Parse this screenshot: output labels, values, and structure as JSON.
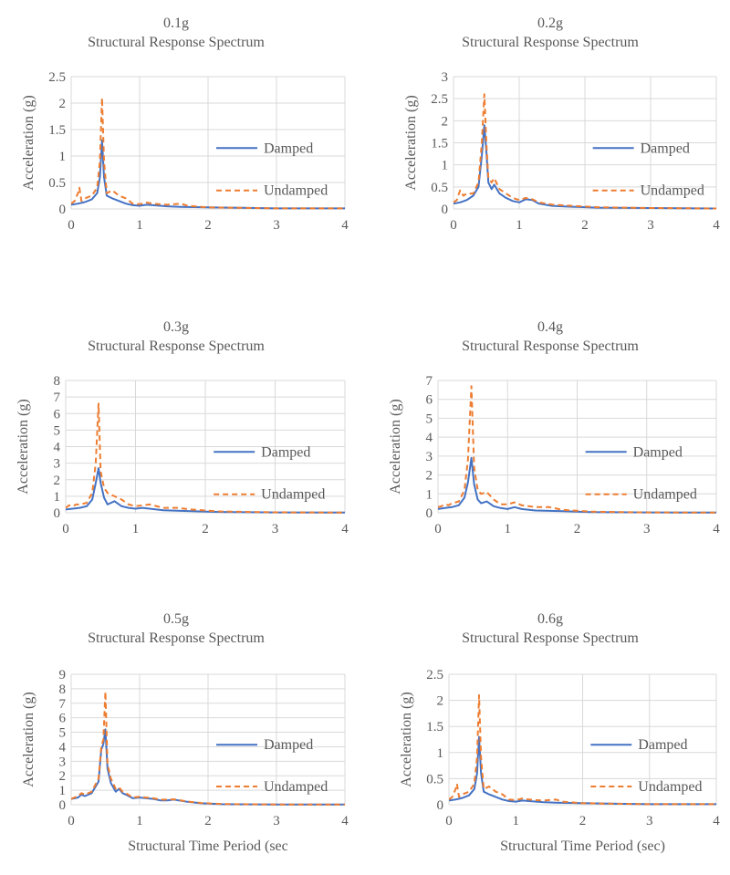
{
  "legend": {
    "damped": "Damped",
    "undamped": "Undamped"
  },
  "colors": {
    "damped": "#4472C4",
    "undamped": "#ED7D31",
    "grid": "#D9D9D9",
    "text": "#595959"
  },
  "chart_data": [
    {
      "type": "line",
      "title": "0.1g",
      "subtitle": "Structural Response Spectrum",
      "xlabel": "",
      "ylabel": "Acceleration (g)",
      "xlim": [
        0,
        4
      ],
      "ylim": [
        0,
        2.5
      ],
      "ytick_step": 0.5,
      "xticks": [
        "0",
        "1",
        "2",
        "3",
        "4"
      ],
      "yticks": [
        "0",
        "0.5",
        "1",
        "1.5",
        "2",
        "2.5"
      ],
      "grid": true,
      "legend_position": "right",
      "series": [
        {
          "name": "Damped",
          "style": "solid",
          "x": [
            0,
            0.1,
            0.2,
            0.3,
            0.38,
            0.42,
            0.45,
            0.48,
            0.52,
            0.6,
            0.7,
            0.8,
            0.9,
            1.0,
            1.1,
            1.2,
            1.4,
            1.6,
            2.0,
            2.5,
            3.0,
            4.0
          ],
          "y": [
            0.08,
            0.1,
            0.13,
            0.18,
            0.3,
            0.6,
            1.3,
            0.6,
            0.25,
            0.2,
            0.15,
            0.1,
            0.07,
            0.06,
            0.08,
            0.07,
            0.05,
            0.04,
            0.03,
            0.02,
            0.01,
            0.01
          ]
        },
        {
          "name": "Undamped",
          "style": "dashed",
          "x": [
            0,
            0.05,
            0.1,
            0.12,
            0.15,
            0.2,
            0.3,
            0.38,
            0.42,
            0.45,
            0.48,
            0.52,
            0.6,
            0.65,
            0.7,
            0.8,
            0.9,
            1.0,
            1.1,
            1.2,
            1.4,
            1.6,
            1.7,
            2.0,
            2.5,
            3.0,
            4.0
          ],
          "y": [
            0.1,
            0.15,
            0.3,
            0.4,
            0.15,
            0.2,
            0.25,
            0.4,
            0.9,
            2.1,
            0.9,
            0.3,
            0.35,
            0.3,
            0.25,
            0.2,
            0.1,
            0.09,
            0.12,
            0.1,
            0.08,
            0.1,
            0.06,
            0.03,
            0.02,
            0.01,
            0.01
          ]
        }
      ]
    },
    {
      "type": "line",
      "title": "0.2g",
      "subtitle": "Structural Response Spectrum",
      "xlabel": "",
      "ylabel": "Acceleration (g)",
      "xlim": [
        0,
        4
      ],
      "ylim": [
        0,
        3
      ],
      "ytick_step": 0.5,
      "xticks": [
        "0",
        "1",
        "2",
        "3",
        "4"
      ],
      "yticks": [
        "0",
        "0.5",
        "1",
        "1.5",
        "2",
        "2.5",
        "3"
      ],
      "grid": true,
      "legend_position": "right",
      "series": [
        {
          "name": "Damped",
          "style": "solid",
          "x": [
            0,
            0.1,
            0.2,
            0.3,
            0.38,
            0.43,
            0.47,
            0.5,
            0.53,
            0.58,
            0.62,
            0.7,
            0.8,
            0.9,
            1.0,
            1.1,
            1.2,
            1.3,
            1.5,
            1.8,
            2.2,
            3.0,
            4.0
          ],
          "y": [
            0.12,
            0.15,
            0.2,
            0.3,
            0.5,
            1.2,
            1.9,
            1.3,
            0.6,
            0.45,
            0.55,
            0.35,
            0.25,
            0.18,
            0.15,
            0.22,
            0.2,
            0.12,
            0.07,
            0.05,
            0.03,
            0.02,
            0.01
          ]
        },
        {
          "name": "Undamped",
          "style": "dashed",
          "x": [
            0,
            0.05,
            0.1,
            0.15,
            0.2,
            0.3,
            0.38,
            0.43,
            0.47,
            0.5,
            0.53,
            0.58,
            0.62,
            0.7,
            0.8,
            0.9,
            1.0,
            1.1,
            1.2,
            1.3,
            1.5,
            1.8,
            2.2,
            3.0,
            4.0
          ],
          "y": [
            0.15,
            0.2,
            0.42,
            0.3,
            0.35,
            0.35,
            0.6,
            1.5,
            2.6,
            1.5,
            0.7,
            0.6,
            0.7,
            0.45,
            0.35,
            0.25,
            0.2,
            0.25,
            0.22,
            0.15,
            0.1,
            0.07,
            0.04,
            0.02,
            0.01
          ]
        }
      ]
    },
    {
      "type": "line",
      "title": "0.3g",
      "subtitle": "Structural Response Spectrum",
      "xlabel": "",
      "ylabel": "Acceleration (g)",
      "xlim": [
        0,
        4
      ],
      "ylim": [
        0,
        8
      ],
      "ytick_step": 1,
      "xticks": [
        "0",
        "1",
        "2",
        "3",
        "4"
      ],
      "yticks": [
        "0",
        "1",
        "2",
        "3",
        "4",
        "5",
        "6",
        "7",
        "8"
      ],
      "grid": true,
      "legend_position": "right",
      "series": [
        {
          "name": "Damped",
          "style": "solid",
          "x": [
            0,
            0.1,
            0.2,
            0.3,
            0.38,
            0.43,
            0.47,
            0.5,
            0.55,
            0.6,
            0.7,
            0.8,
            0.9,
            1.0,
            1.1,
            1.2,
            1.4,
            1.8,
            2.2,
            3.0,
            4.0
          ],
          "y": [
            0.2,
            0.25,
            0.3,
            0.4,
            0.8,
            1.8,
            2.7,
            1.8,
            0.9,
            0.5,
            0.7,
            0.4,
            0.3,
            0.25,
            0.3,
            0.25,
            0.15,
            0.1,
            0.05,
            0.02,
            0.01
          ]
        },
        {
          "name": "Undamped",
          "style": "dashed",
          "x": [
            0,
            0.05,
            0.1,
            0.15,
            0.2,
            0.3,
            0.38,
            0.43,
            0.47,
            0.5,
            0.55,
            0.6,
            0.7,
            0.8,
            0.9,
            1.0,
            1.2,
            1.4,
            1.6,
            1.8,
            2.2,
            3.0,
            4.0
          ],
          "y": [
            0.3,
            0.45,
            0.4,
            0.5,
            0.5,
            0.6,
            1.2,
            3.0,
            6.6,
            2.5,
            1.5,
            1.2,
            1.0,
            0.8,
            0.5,
            0.4,
            0.5,
            0.3,
            0.3,
            0.2,
            0.08,
            0.03,
            0.01
          ]
        }
      ]
    },
    {
      "type": "line",
      "title": "0.4g",
      "subtitle": "Structural Response Spectrum",
      "xlabel": "",
      "ylabel": "Acceleration (g)",
      "xlim": [
        0,
        4
      ],
      "ylim": [
        0,
        7
      ],
      "ytick_step": 1,
      "xticks": [
        "0",
        "1",
        "2",
        "3",
        "4"
      ],
      "yticks": [
        "0",
        "1",
        "2",
        "3",
        "4",
        "5",
        "6",
        "7"
      ],
      "grid": true,
      "legend_position": "right",
      "series": [
        {
          "name": "Damped",
          "style": "solid",
          "x": [
            0,
            0.1,
            0.2,
            0.3,
            0.38,
            0.43,
            0.48,
            0.52,
            0.57,
            0.62,
            0.7,
            0.8,
            0.9,
            1.0,
            1.1,
            1.2,
            1.4,
            1.8,
            2.2,
            3.0,
            4.0
          ],
          "y": [
            0.2,
            0.25,
            0.3,
            0.4,
            0.8,
            1.6,
            2.9,
            1.5,
            0.7,
            0.5,
            0.6,
            0.35,
            0.25,
            0.2,
            0.3,
            0.2,
            0.12,
            0.08,
            0.04,
            0.02,
            0.01
          ]
        },
        {
          "name": "Undamped",
          "style": "dashed",
          "x": [
            0,
            0.05,
            0.1,
            0.15,
            0.2,
            0.3,
            0.38,
            0.43,
            0.48,
            0.52,
            0.57,
            0.62,
            0.7,
            0.8,
            0.9,
            1.0,
            1.1,
            1.2,
            1.4,
            1.6,
            1.8,
            2.2,
            3.0,
            4.0
          ],
          "y": [
            0.3,
            0.35,
            0.45,
            0.4,
            0.5,
            0.6,
            1.2,
            2.8,
            6.7,
            2.4,
            1.2,
            1.0,
            1.1,
            0.7,
            0.45,
            0.45,
            0.55,
            0.4,
            0.3,
            0.3,
            0.15,
            0.06,
            0.02,
            0.01
          ]
        }
      ]
    },
    {
      "type": "line",
      "title": "0.5g",
      "subtitle": "Structural Response Spectrum",
      "xlabel": "Structural Time Period (sec",
      "ylabel": "Acceleration (g)",
      "xlim": [
        0,
        4
      ],
      "ylim": [
        0,
        9
      ],
      "ytick_step": 1,
      "xticks": [
        "0",
        "1",
        "2",
        "3",
        "4"
      ],
      "yticks": [
        "0",
        "1",
        "2",
        "3",
        "4",
        "5",
        "6",
        "7",
        "8",
        "9"
      ],
      "grid": true,
      "legend_position": "right",
      "series": [
        {
          "name": "Damped",
          "style": "solid",
          "x": [
            0,
            0.1,
            0.15,
            0.2,
            0.3,
            0.4,
            0.44,
            0.47,
            0.5,
            0.53,
            0.58,
            0.65,
            0.7,
            0.75,
            0.8,
            0.9,
            1.0,
            1.1,
            1.2,
            1.3,
            1.4,
            1.5,
            1.7,
            1.9,
            2.2,
            3.0,
            4.0
          ],
          "y": [
            0.4,
            0.5,
            0.7,
            0.6,
            0.8,
            1.6,
            3.8,
            4.2,
            5.2,
            2.5,
            1.5,
            0.9,
            1.1,
            0.8,
            0.7,
            0.45,
            0.5,
            0.45,
            0.4,
            0.3,
            0.3,
            0.35,
            0.2,
            0.1,
            0.04,
            0.02,
            0.01
          ]
        },
        {
          "name": "Undamped",
          "style": "dashed",
          "x": [
            0,
            0.1,
            0.15,
            0.2,
            0.3,
            0.4,
            0.44,
            0.47,
            0.5,
            0.53,
            0.58,
            0.65,
            0.7,
            0.75,
            0.8,
            0.9,
            1.0,
            1.1,
            1.2,
            1.3,
            1.4,
            1.5,
            1.7,
            1.9,
            2.2,
            3.0,
            4.0
          ],
          "y": [
            0.4,
            0.6,
            0.8,
            0.7,
            0.9,
            1.8,
            4.0,
            4.5,
            7.8,
            2.8,
            1.8,
            1.1,
            1.2,
            0.9,
            0.8,
            0.5,
            0.55,
            0.5,
            0.45,
            0.35,
            0.35,
            0.38,
            0.22,
            0.12,
            0.05,
            0.02,
            0.01
          ]
        }
      ]
    },
    {
      "type": "line",
      "title": "0.6g",
      "subtitle": "Structural Response Spectrum",
      "xlabel": "Structural Time Period (sec)",
      "ylabel": "Acceleration (g)",
      "xlim": [
        0,
        4
      ],
      "ylim": [
        0,
        2.5
      ],
      "ytick_step": 0.5,
      "xticks": [
        "0",
        "1",
        "2",
        "3",
        "4"
      ],
      "yticks": [
        "0",
        "0.5",
        "1",
        "1.5",
        "2",
        "2.5"
      ],
      "grid": true,
      "legend_position": "right",
      "series": [
        {
          "name": "Damped",
          "style": "solid",
          "x": [
            0,
            0.1,
            0.2,
            0.3,
            0.38,
            0.42,
            0.45,
            0.48,
            0.52,
            0.6,
            0.7,
            0.8,
            0.9,
            1.0,
            1.1,
            1.2,
            1.4,
            1.6,
            2.0,
            2.5,
            3.0,
            4.0
          ],
          "y": [
            0.08,
            0.1,
            0.13,
            0.18,
            0.3,
            0.6,
            1.3,
            0.6,
            0.25,
            0.2,
            0.15,
            0.1,
            0.07,
            0.06,
            0.08,
            0.07,
            0.05,
            0.04,
            0.03,
            0.02,
            0.01,
            0.01
          ]
        },
        {
          "name": "Undamped",
          "style": "dashed",
          "x": [
            0,
            0.05,
            0.1,
            0.12,
            0.15,
            0.2,
            0.3,
            0.38,
            0.42,
            0.45,
            0.48,
            0.52,
            0.6,
            0.65,
            0.7,
            0.8,
            0.9,
            1.0,
            1.1,
            1.2,
            1.4,
            1.6,
            1.7,
            2.0,
            2.5,
            3.0,
            4.0
          ],
          "y": [
            0.1,
            0.15,
            0.3,
            0.4,
            0.15,
            0.2,
            0.25,
            0.4,
            0.9,
            2.1,
            0.9,
            0.3,
            0.35,
            0.3,
            0.25,
            0.2,
            0.1,
            0.09,
            0.12,
            0.1,
            0.08,
            0.1,
            0.06,
            0.03,
            0.02,
            0.01,
            0.01
          ]
        }
      ]
    }
  ]
}
